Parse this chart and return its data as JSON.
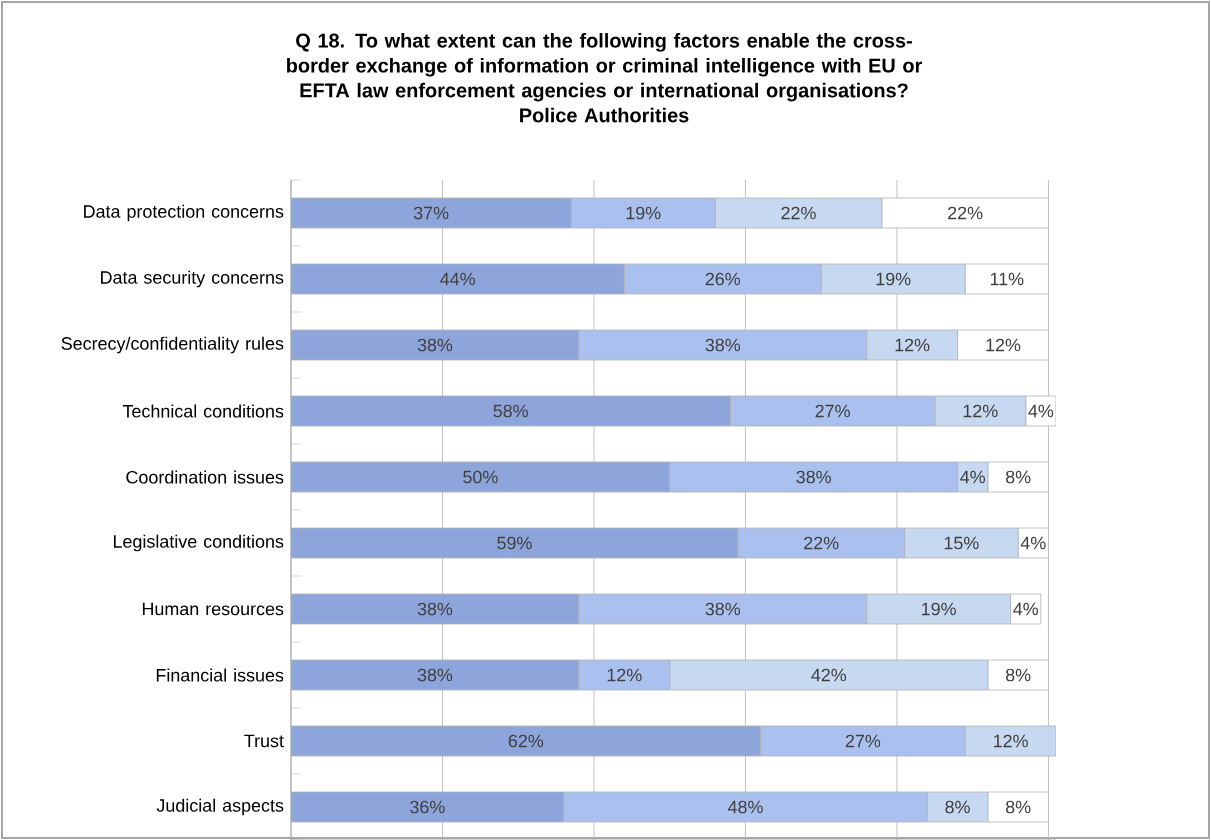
{
  "chart_data": {
    "type": "bar",
    "orientation": "horizontal",
    "stacked": true,
    "title": "Q 18. To what extent can the following factors enable the cross-border exchange of information or criminal intelligence with EU or EFTA law enforcement agencies or international organisations?",
    "subtitle": "Police Authorities",
    "categories": [
      "Data protection concerns",
      "Data security concerns",
      "Secrecy/confidentiality rules",
      "Technical conditions",
      "Coordination issues",
      "Legislative conditions",
      "Human resources",
      "Financial issues",
      "Trust",
      "Judicial aspects"
    ],
    "series": [
      {
        "color": "#8ea5dc",
        "values": [
          37,
          44,
          38,
          58,
          50,
          59,
          38,
          38,
          62,
          36
        ],
        "value_labels": [
          "37%",
          "44%",
          "38%",
          "58%",
          "50%",
          "59%",
          "38%",
          "38%",
          "62%",
          "36%"
        ]
      },
      {
        "color": "#aac1f0",
        "values": [
          19,
          26,
          38,
          27,
          38,
          22,
          38,
          12,
          27,
          48
        ],
        "value_labels": [
          "19%",
          "26%",
          "38%",
          "27%",
          "38%",
          "22%",
          "38%",
          "12%",
          "27%",
          "48%"
        ]
      },
      {
        "color": "#c6d9f1",
        "values": [
          22,
          19,
          12,
          12,
          4,
          15,
          19,
          42,
          12,
          8
        ],
        "value_labels": [
          "22%",
          "19%",
          "12%",
          "12%",
          "4%",
          "15%",
          "19%",
          "42%",
          "12%",
          "8%"
        ]
      },
      {
        "color": "#ffffff",
        "values": [
          22,
          11,
          12,
          4,
          8,
          4,
          4,
          8,
          null,
          8
        ],
        "value_labels": [
          "22%",
          "11%",
          "12%",
          "4%",
          "8%",
          "4%",
          "4%",
          "8%",
          null,
          "8%"
        ]
      }
    ],
    "xlim": [
      0,
      101
    ],
    "xticks": [
      {
        "value": 0,
        "label": null
      },
      {
        "value": 20,
        "label": null
      },
      {
        "value": 40,
        "label": null
      },
      {
        "value": 60,
        "label": null
      },
      {
        "value": 80,
        "label": null
      },
      {
        "value": 100,
        "label": null
      }
    ],
    "grid": "x",
    "tick_labels": "y"
  }
}
